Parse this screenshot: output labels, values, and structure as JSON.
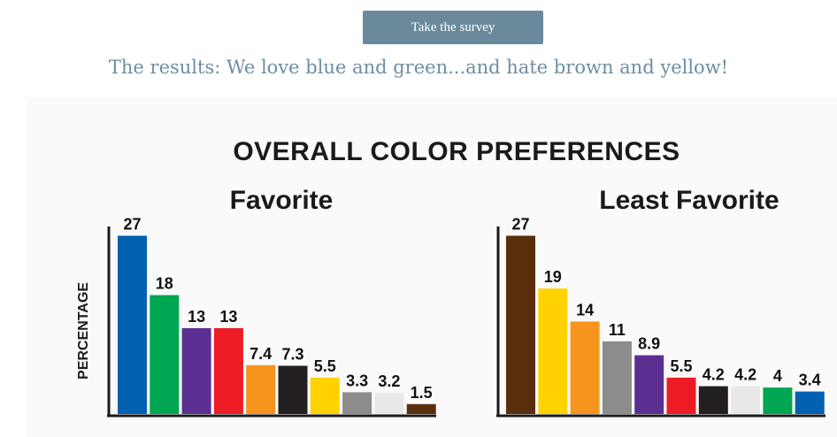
{
  "survey_button": {
    "label": "Take the survey"
  },
  "headline": "The results: We love blue and green...and hate brown and yellow!",
  "infographic_title": "OVERALL COLOR PREFERENCES",
  "chart_data": [
    {
      "type": "bar",
      "title": "Favorite",
      "ylabel": "PERCENTAGE",
      "xlabel": "",
      "ylim": [
        0,
        28
      ],
      "values": [
        27,
        18,
        13,
        13,
        7.4,
        7.3,
        5.5,
        3.3,
        3.2,
        1.5
      ],
      "labels": [
        "27",
        "18",
        "13",
        "13",
        "7.4",
        "7.3",
        "5.5",
        "3.3",
        "3.2",
        "1.5"
      ],
      "bar_colors": [
        "#0061b0",
        "#00a651",
        "#5b2f91",
        "#ed1c24",
        "#f7941d",
        "#231f20",
        "#ffd200",
        "#8c8c8c",
        "#e8e8e8",
        "#5a2d0c"
      ],
      "bar_color_names": [
        "blue",
        "green",
        "purple",
        "red",
        "orange",
        "black",
        "yellow",
        "gray",
        "white",
        "brown"
      ]
    },
    {
      "type": "bar",
      "title": "Least Favorite",
      "ylabel": "",
      "xlabel": "",
      "ylim": [
        0,
        28
      ],
      "values": [
        27,
        19,
        14,
        11,
        8.9,
        5.5,
        4.2,
        4.2,
        4,
        3.4
      ],
      "labels": [
        "27",
        "19",
        "14",
        "11",
        "8.9",
        "5.5",
        "4.2",
        "4.2",
        "4",
        "3.4"
      ],
      "bar_colors": [
        "#5a2d0c",
        "#ffd200",
        "#f7941d",
        "#8c8c8c",
        "#5b2f91",
        "#ed1c24",
        "#231f20",
        "#e8e8e8",
        "#00a651",
        "#0061b0"
      ],
      "bar_color_names": [
        "brown",
        "yellow",
        "orange",
        "gray",
        "purple",
        "red",
        "black",
        "white",
        "green",
        "blue"
      ]
    }
  ]
}
